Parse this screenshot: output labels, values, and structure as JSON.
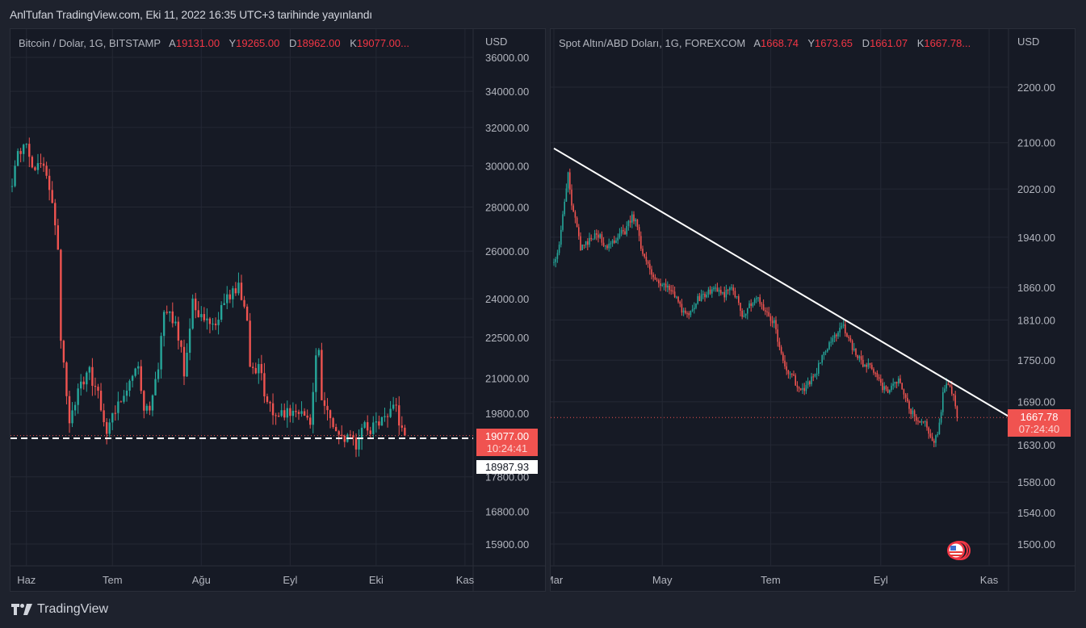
{
  "published": "AnlTufan TradingView.com, Eki 11, 2022 16:35 UTC+3 tarihinde yayınlandı",
  "footer": {
    "brand": "TradingView"
  },
  "colors": {
    "up": "#26a69a",
    "down": "#ef5350",
    "grid": "#242834",
    "bg": "#161a25",
    "trend": "#ffffff"
  },
  "chart_data": [
    {
      "type": "candlestick",
      "title": "Bitcoin / Dolar, 1G, BITSTAMP",
      "ohlc_labels": {
        "o": "A",
        "h": "Y",
        "l": "D",
        "c": "K"
      },
      "ohlc": {
        "o": "19131.00",
        "h": "19265.00",
        "l": "18962.00",
        "c": "19077.00..."
      },
      "currency": "USD",
      "scale": "log",
      "ylim": [
        15900,
        36000
      ],
      "yticks": [
        "36000.00",
        "34000.00",
        "32000.00",
        "30000.00",
        "28000.00",
        "26000.00",
        "24000.00",
        "22500.00",
        "21000.00",
        "19800.00",
        "17800.00",
        "16800.00",
        "15900.00"
      ],
      "xticks": [
        {
          "label": "Haz",
          "day": 5
        },
        {
          "label": "Tem",
          "day": 35
        },
        {
          "label": "Ağu",
          "day": 66
        },
        {
          "label": "Eyl",
          "day": 97
        },
        {
          "label": "Eki",
          "day": 127
        },
        {
          "label": "Kas",
          "day": 158
        }
      ],
      "x_days": 161,
      "closes_keypoints": [
        [
          0,
          29000
        ],
        [
          2,
          30500
        ],
        [
          5,
          31000
        ],
        [
          8,
          29800
        ],
        [
          11,
          30000
        ],
        [
          14,
          28500
        ],
        [
          16,
          26000
        ],
        [
          17,
          22500
        ],
        [
          19,
          20500
        ],
        [
          20,
          19500
        ],
        [
          24,
          20800
        ],
        [
          27,
          21200
        ],
        [
          30,
          20500
        ],
        [
          33,
          19300
        ],
        [
          36,
          19800
        ],
        [
          38,
          20300
        ],
        [
          41,
          21000
        ],
        [
          44,
          21500
        ],
        [
          46,
          19900
        ],
        [
          48,
          20100
        ],
        [
          51,
          21500
        ],
        [
          53,
          23300
        ],
        [
          55,
          23400
        ],
        [
          58,
          22600
        ],
        [
          60,
          21200
        ],
        [
          63,
          23900
        ],
        [
          66,
          23300
        ],
        [
          68,
          23000
        ],
        [
          71,
          23200
        ],
        [
          73,
          23600
        ],
        [
          76,
          24100
        ],
        [
          79,
          24400
        ],
        [
          80,
          24100
        ],
        [
          82,
          23300
        ],
        [
          83,
          21300
        ],
        [
          86,
          21400
        ],
        [
          89,
          20200
        ],
        [
          91,
          19900
        ],
        [
          94,
          19800
        ],
        [
          97,
          19900
        ],
        [
          101,
          19800
        ],
        [
          104,
          19300
        ],
        [
          106,
          21600
        ],
        [
          107,
          22200
        ],
        [
          108,
          20200
        ],
        [
          110,
          19700
        ],
        [
          113,
          19200
        ],
        [
          117,
          19000
        ],
        [
          120,
          18800
        ],
        [
          122,
          19500
        ],
        [
          125,
          19300
        ],
        [
          128,
          19600
        ],
        [
          131,
          19800
        ],
        [
          133,
          20300
        ],
        [
          135,
          19500
        ],
        [
          137,
          19077
        ]
      ],
      "current": {
        "price": "19077.00",
        "countdown": "10:24:41"
      },
      "hline": {
        "price": "18987.93",
        "value": 18987.93
      }
    },
    {
      "type": "candlestick",
      "title": "Spot Altın/ABD Doları, 1G, FOREXCOM",
      "ohlc_labels": {
        "o": "A",
        "h": "Y",
        "l": "D",
        "c": "K"
      },
      "ohlc": {
        "o": "1668.74",
        "h": "1673.65",
        "l": "1661.07",
        "c": "1667.78..."
      },
      "currency": "USD",
      "scale": "log",
      "ylim": [
        1500,
        2200
      ],
      "yticks": [
        "2200.00",
        "2100.00",
        "2020.00",
        "1940.00",
        "1860.00",
        "1810.00",
        "1750.00",
        "1690.00",
        "1630.00",
        "1580.00",
        "1540.00",
        "1500.00"
      ],
      "xticks": [
        {
          "label": "Mar",
          "day": 0
        },
        {
          "label": "May",
          "day": 61
        },
        {
          "label": "Tem",
          "day": 122
        },
        {
          "label": "Eyl",
          "day": 184
        },
        {
          "label": "Kas",
          "day": 245
        }
      ],
      "x_days": 255,
      "closes_keypoints": [
        [
          0,
          1900
        ],
        [
          3,
          1930
        ],
        [
          6,
          2000
        ],
        [
          8,
          2050
        ],
        [
          10,
          1990
        ],
        [
          13,
          1960
        ],
        [
          15,
          1920
        ],
        [
          20,
          1935
        ],
        [
          24,
          1950
        ],
        [
          28,
          1930
        ],
        [
          32,
          1925
        ],
        [
          36,
          1945
        ],
        [
          40,
          1950
        ],
        [
          44,
          1975
        ],
        [
          47,
          1960
        ],
        [
          49,
          1920
        ],
        [
          52,
          1900
        ],
        [
          56,
          1880
        ],
        [
          61,
          1865
        ],
        [
          66,
          1855
        ],
        [
          70,
          1840
        ],
        [
          73,
          1820
        ],
        [
          76,
          1815
        ],
        [
          80,
          1840
        ],
        [
          85,
          1850
        ],
        [
          90,
          1855
        ],
        [
          96,
          1850
        ],
        [
          100,
          1860
        ],
        [
          103,
          1845
        ],
        [
          106,
          1815
        ],
        [
          110,
          1835
        ],
        [
          115,
          1840
        ],
        [
          120,
          1820
        ],
        [
          124,
          1805
        ],
        [
          127,
          1765
        ],
        [
          130,
          1740
        ],
        [
          134,
          1730
        ],
        [
          137,
          1710
        ],
        [
          140,
          1705
        ],
        [
          144,
          1720
        ],
        [
          148,
          1735
        ],
        [
          152,
          1760
        ],
        [
          156,
          1775
        ],
        [
          160,
          1790
        ],
        [
          163,
          1800
        ],
        [
          166,
          1780
        ],
        [
          170,
          1760
        ],
        [
          174,
          1745
        ],
        [
          178,
          1740
        ],
        [
          181,
          1735
        ],
        [
          184,
          1715
        ],
        [
          187,
          1705
        ],
        [
          191,
          1715
        ],
        [
          194,
          1720
        ],
        [
          197,
          1705
        ],
        [
          200,
          1680
        ],
        [
          203,
          1670
        ],
        [
          206,
          1665
        ],
        [
          209,
          1660
        ],
        [
          212,
          1640
        ],
        [
          214,
          1628
        ],
        [
          217,
          1660
        ],
        [
          219,
          1700
        ],
        [
          221,
          1720
        ],
        [
          223,
          1710
        ],
        [
          225,
          1695
        ],
        [
          227,
          1668
        ]
      ],
      "current": {
        "price": "1667.78",
        "countdown": "07:24:40"
      },
      "trendline": [
        [
          0,
          2090
        ],
        [
          257,
          1668
        ]
      ]
    }
  ]
}
